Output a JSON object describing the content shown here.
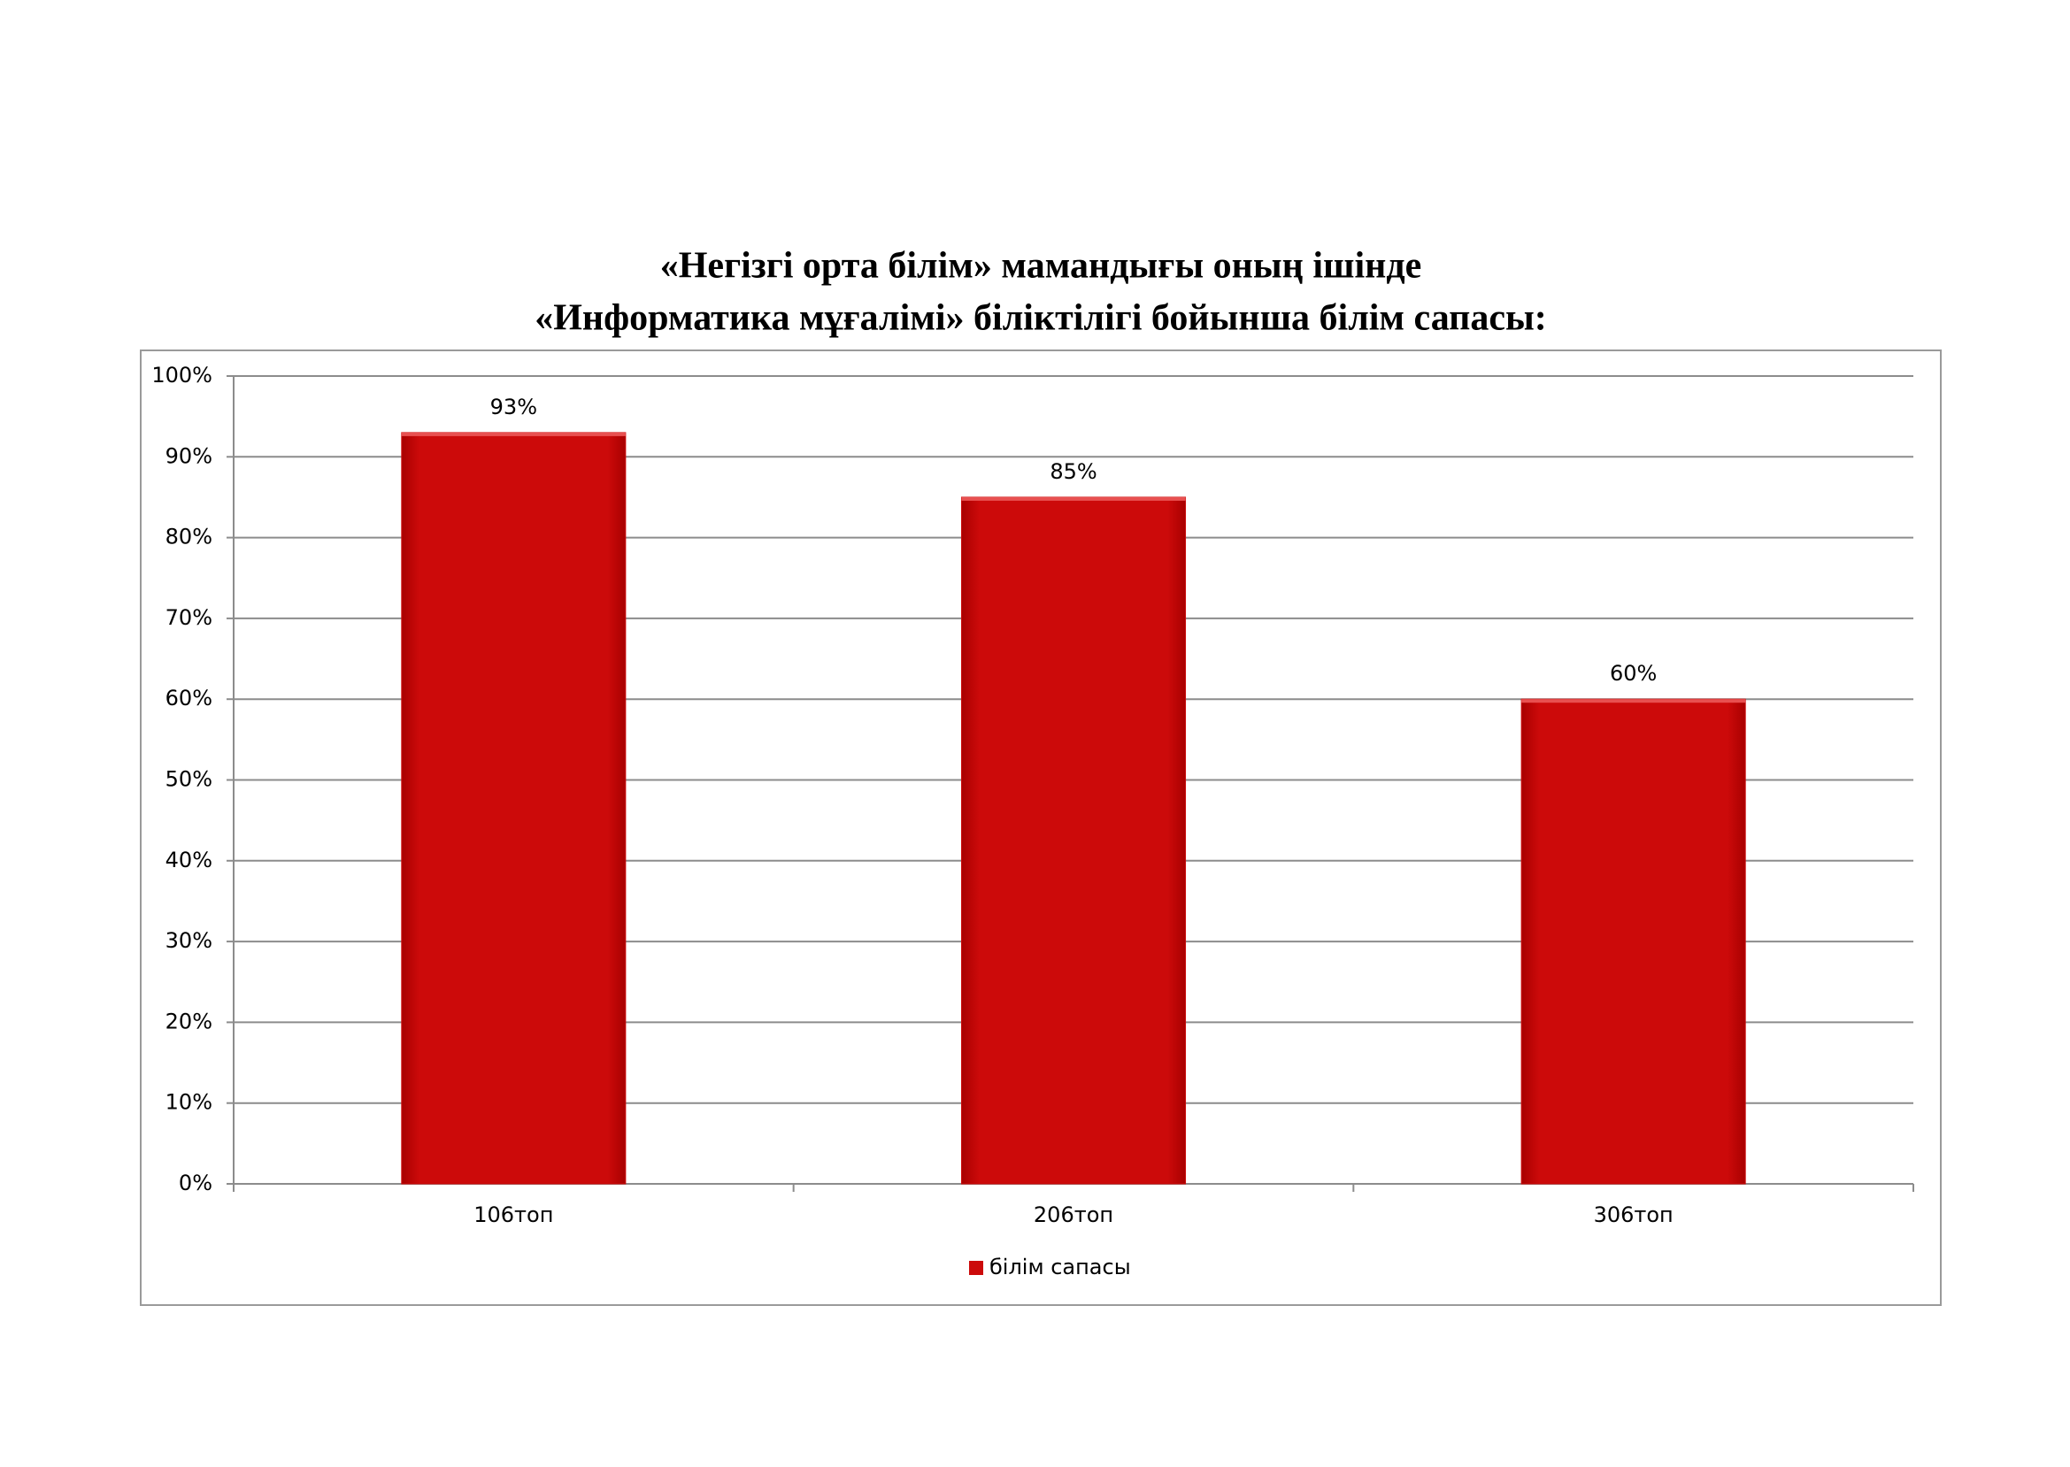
{
  "chart_data": {
    "type": "bar",
    "title": [
      "«Негізгі орта білім» мамандығы оның ішінде",
      "«Информатика мұғалімі» біліктілігі бойынша білім сапасы:"
    ],
    "categories": [
      "106топ",
      "206топ",
      "306топ"
    ],
    "series": [
      {
        "name": "білім сапасы",
        "color": "#cc0a0a",
        "values": [
          93,
          85,
          60
        ],
        "value_labels": [
          "93%",
          "85%",
          "60%"
        ]
      }
    ],
    "ylim": [
      0,
      100
    ],
    "yticks": [
      {
        "value": 0,
        "label": "0%"
      },
      {
        "value": 10,
        "label": "10%"
      },
      {
        "value": 20,
        "label": "20%"
      },
      {
        "value": 30,
        "label": "30%"
      },
      {
        "value": 40,
        "label": "40%"
      },
      {
        "value": 50,
        "label": "50%"
      },
      {
        "value": 60,
        "label": "60%"
      },
      {
        "value": 70,
        "label": "70%"
      },
      {
        "value": 80,
        "label": "80%"
      },
      {
        "value": 90,
        "label": "90%"
      },
      {
        "value": 100,
        "label": "100%"
      }
    ],
    "grid": true,
    "legend": "bottom"
  }
}
